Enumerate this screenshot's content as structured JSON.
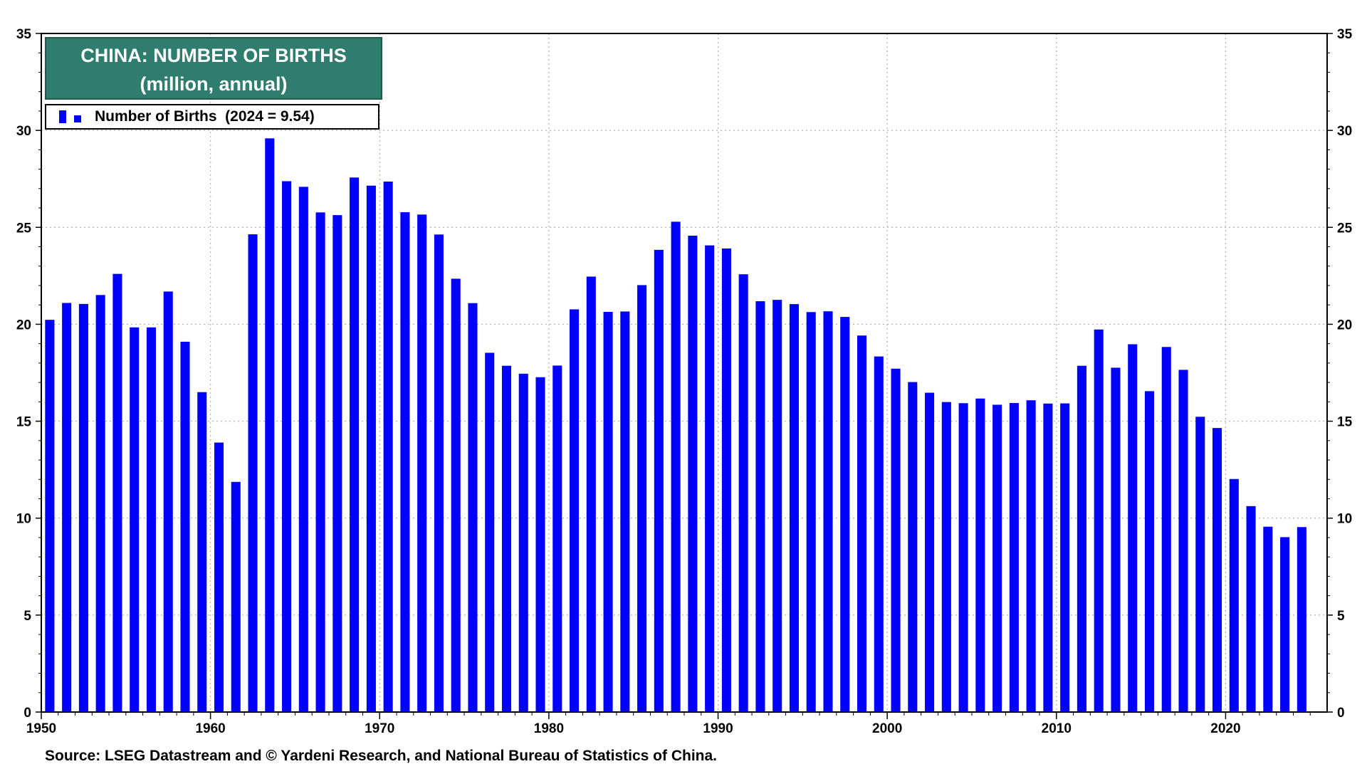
{
  "chart_data": {
    "type": "bar",
    "title": "CHINA: NUMBER OF BIRTHS",
    "subtitle": "(million, annual)",
    "legend": {
      "label": "Number of Births  (2024 = 9.54)",
      "position": "top-left"
    },
    "source": "Source: LSEG Datastream and © Yardeni Research, and National Bureau of Statistics of China.",
    "ylim": [
      0,
      35
    ],
    "yticks": [
      0,
      5,
      10,
      15,
      20,
      25,
      30,
      35
    ],
    "y_axes": "left and right",
    "xlim": [
      1950,
      2025
    ],
    "xticks": [
      1950,
      1960,
      1970,
      1980,
      1990,
      2000,
      2010,
      2020
    ],
    "grid": true,
    "color": "#0000ff",
    "series": [
      {
        "x": [
          1950,
          1951,
          1952,
          1953,
          1954,
          1955,
          1956,
          1957,
          1958,
          1959,
          1960,
          1961,
          1962,
          1963,
          1964,
          1965,
          1966,
          1967,
          1968,
          1969,
          1970,
          1971,
          1972,
          1973,
          1974,
          1975,
          1976,
          1977,
          1978,
          1979,
          1980,
          1981,
          1982,
          1983,
          1984,
          1985,
          1986,
          1987,
          1988,
          1989,
          1990,
          1991,
          1992,
          1993,
          1994,
          1995,
          1996,
          1997,
          1998,
          1999,
          2000,
          2001,
          2002,
          2003,
          2004,
          2005,
          2006,
          2007,
          2008,
          2009,
          2010,
          2011,
          2012,
          2013,
          2014,
          2015,
          2016,
          2017,
          2018,
          2019,
          2020,
          2021,
          2022,
          2023,
          2024
        ],
        "values": [
          20.23,
          21.1,
          21.05,
          21.51,
          22.6,
          19.84,
          19.84,
          21.69,
          19.1,
          16.5,
          13.9,
          11.87,
          24.64,
          29.59,
          27.38,
          27.09,
          25.77,
          25.63,
          27.57,
          27.15,
          27.36,
          25.78,
          25.66,
          24.63,
          22.35,
          21.09,
          18.53,
          17.86,
          17.45,
          17.27,
          17.87,
          20.77,
          22.46,
          20.64,
          20.66,
          22.02,
          23.84,
          25.29,
          24.57,
          24.07,
          23.91,
          22.58,
          21.19,
          21.26,
          21.04,
          20.63,
          20.67,
          20.38,
          19.42,
          18.34,
          17.71,
          17.02,
          16.47,
          15.99,
          15.93,
          16.17,
          15.85,
          15.94,
          16.08,
          15.91,
          15.92,
          17.86,
          19.73,
          17.76,
          18.97,
          16.55,
          18.83,
          17.65,
          15.23,
          14.65,
          12.02,
          10.62,
          9.56,
          9.02,
          9.54
        ]
      }
    ]
  }
}
